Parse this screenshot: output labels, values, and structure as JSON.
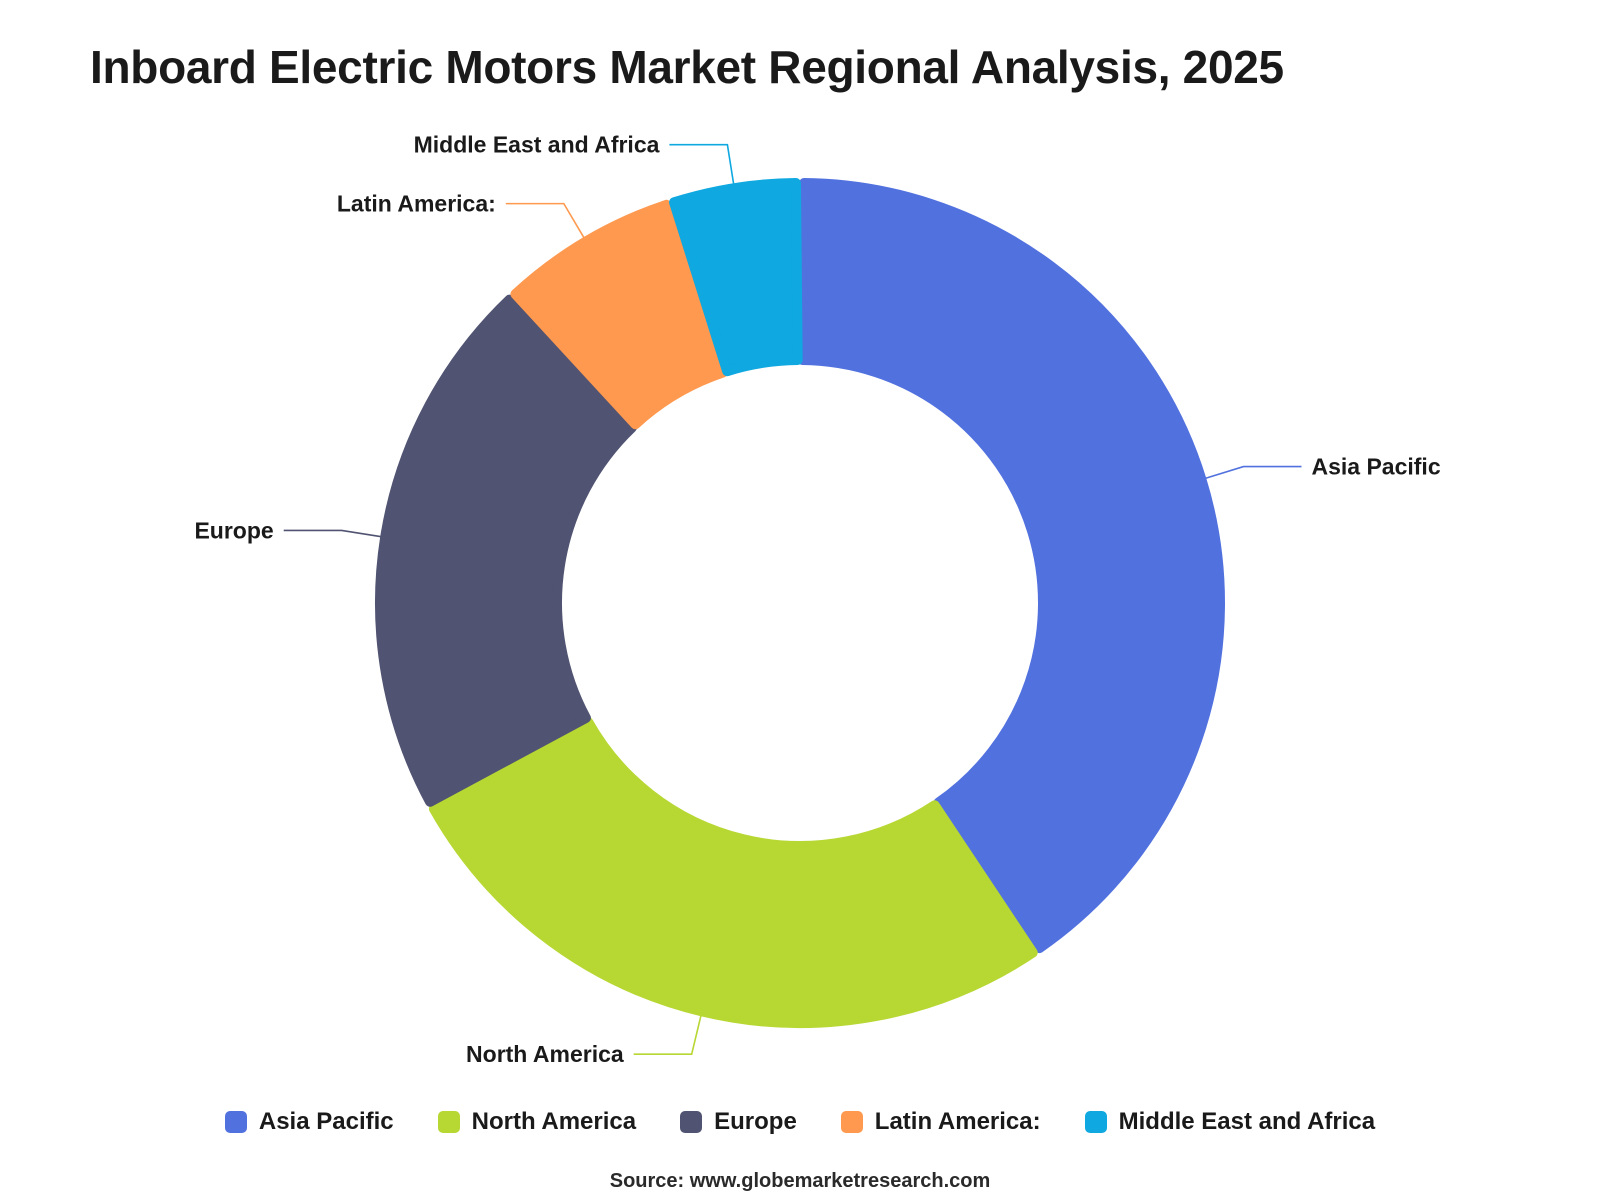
{
  "chart_data": {
    "type": "pie",
    "variant": "donut",
    "title": "Inboard Electric Motors Market Regional Analysis, 2025",
    "categories": [
      "Asia Pacific",
      "North America",
      "Europe",
      "Latin America:",
      "Middle East and Africa"
    ],
    "values": [
      40.5,
      26.5,
      21.0,
      7.0,
      5.0
    ],
    "colors": [
      "#5171df",
      "#b7d733",
      "#505371",
      "#fe994f",
      "#0fa8e0"
    ],
    "legend": "bottom"
  },
  "source": "Source: www.globemarketresearch.com"
}
